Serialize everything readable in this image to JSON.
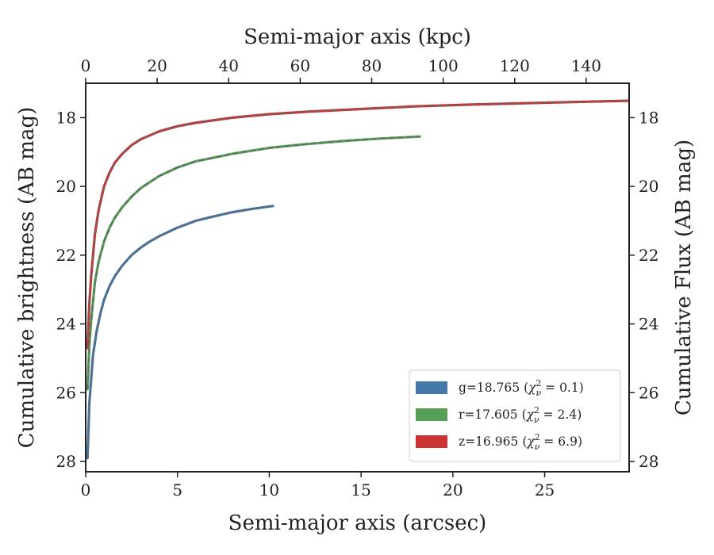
{
  "chart_data": {
    "type": "line",
    "xlabel": "Semi-major axis (arcsec)",
    "x2label": "Semi-major axis (kpc)",
    "ylabel": "Cumulative brightness (AB mag)",
    "y2label": "Cumulative Flux (AB mag)",
    "xlim": [
      0,
      29.6
    ],
    "x2lim": [
      0,
      152
    ],
    "ylim": [
      28.3,
      17.0
    ],
    "y_inverted": true,
    "xticks": [
      "0",
      "5",
      "10",
      "15",
      "20",
      "25"
    ],
    "xtick_values": [
      0,
      5,
      10,
      15,
      20,
      25
    ],
    "x2ticks": [
      "0",
      "20",
      "40",
      "60",
      "80",
      "100",
      "120",
      "140"
    ],
    "x2tick_values": [
      0,
      20,
      40,
      60,
      80,
      100,
      120,
      140
    ],
    "yticks": [
      "18",
      "20",
      "22",
      "24",
      "26",
      "28"
    ],
    "ytick_values": [
      18,
      20,
      22,
      24,
      26,
      28
    ],
    "legend_position": "lower-right",
    "grid": false,
    "series": [
      {
        "name": "g=18.765",
        "chi_label": "χ",
        "chi_sub": "ν",
        "chi_sup": "2",
        "chi_value": " = 0.1)",
        "color": "#4477aa",
        "x": [
          0.1,
          0.2,
          0.4,
          0.6,
          0.8,
          1.0,
          1.3,
          1.6,
          2.0,
          2.5,
          3.0,
          3.5,
          4.0,
          5.0,
          6.0,
          7.0,
          8.0,
          9.0,
          10.2
        ],
        "y": [
          27.9,
          26.3,
          24.9,
          24.2,
          23.7,
          23.3,
          22.9,
          22.6,
          22.3,
          22.0,
          21.78,
          21.6,
          21.45,
          21.2,
          21.0,
          20.87,
          20.75,
          20.66,
          20.57
        ]
      },
      {
        "name": "r=17.605",
        "chi_label": "χ",
        "chi_sub": "ν",
        "chi_sup": "2",
        "chi_value": " = 2.4)",
        "color": "#55a055",
        "x": [
          0.1,
          0.2,
          0.3,
          0.5,
          0.7,
          1.0,
          1.3,
          1.6,
          2.0,
          2.5,
          3.0,
          4.0,
          5.0,
          6.0,
          8.0,
          10.0,
          12.0,
          14.0,
          16.0,
          18.2
        ],
        "y": [
          25.9,
          24.6,
          23.9,
          22.8,
          22.2,
          21.6,
          21.2,
          20.9,
          20.6,
          20.3,
          20.05,
          19.7,
          19.45,
          19.27,
          19.05,
          18.88,
          18.77,
          18.68,
          18.61,
          18.55
        ]
      },
      {
        "name": "z=16.965",
        "chi_label": "χ",
        "chi_sub": "ν",
        "chi_sup": "2",
        "chi_value": " = 6.9)",
        "color": "#cc3333",
        "x": [
          0.1,
          0.2,
          0.3,
          0.5,
          0.7,
          1.0,
          1.3,
          1.6,
          2.0,
          2.5,
          3.0,
          4.0,
          5.0,
          6.0,
          8.0,
          10.0,
          12.0,
          15.0,
          18.0,
          21.0,
          24.0,
          27.0,
          29.5
        ],
        "y": [
          24.7,
          23.4,
          22.6,
          21.4,
          20.7,
          20.0,
          19.6,
          19.3,
          19.05,
          18.8,
          18.63,
          18.4,
          18.25,
          18.15,
          18.0,
          17.9,
          17.83,
          17.75,
          17.67,
          17.62,
          17.58,
          17.54,
          17.51
        ]
      }
    ]
  }
}
